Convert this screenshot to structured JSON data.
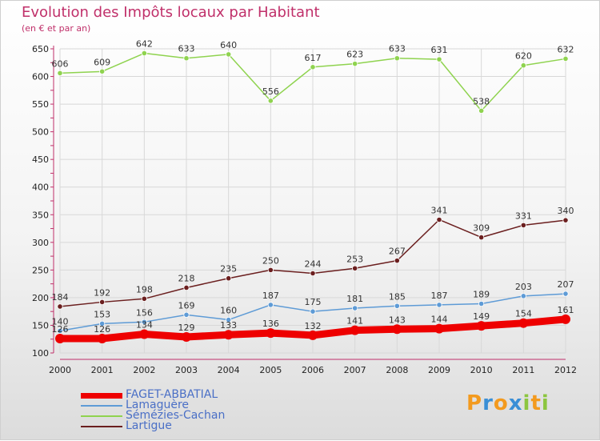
{
  "title": "Evolution des Impôts locaux par Habitant",
  "subtitle": "(en € et par an)",
  "logo": {
    "letters": [
      "P",
      "r",
      "o",
      "x",
      "i",
      "t",
      "i"
    ],
    "colors": [
      "#f39a1e",
      "#3a8fd6",
      "#f39a1e",
      "#3a8fd6",
      "#8cc63f",
      "#f39a1e",
      "#8cc63f"
    ]
  },
  "chart_data": {
    "type": "line",
    "x": [
      "2000",
      "2001",
      "2002",
      "2003",
      "2004",
      "2005",
      "2006",
      "2007",
      "2008",
      "2009",
      "2010",
      "2011",
      "2012"
    ],
    "ylim": [
      100,
      650
    ],
    "yticks": [
      100,
      150,
      200,
      250,
      300,
      350,
      400,
      450,
      500,
      550,
      600,
      650
    ],
    "grid": true,
    "legend_position": "bottom-left",
    "series": [
      {
        "name": "FAGET-ABBATIAL",
        "color": "#ee0000",
        "width": 9,
        "values": [
          126,
          126,
          134,
          129,
          133,
          136,
          132,
          141,
          143,
          144,
          149,
          154,
          161
        ],
        "labels": [
          "126",
          "126",
          "134",
          "129",
          "133",
          "136",
          "132",
          "141",
          "143",
          "144",
          "149",
          "154",
          "161"
        ]
      },
      {
        "name": "Lamaguère",
        "color": "#5e9bd6",
        "width": 1.5,
        "values": [
          140,
          153,
          156,
          169,
          160,
          187,
          175,
          181,
          185,
          187,
          189,
          203,
          207
        ],
        "labels": [
          "140",
          "153",
          "156",
          "169",
          "160",
          "187",
          "175",
          "181",
          "185",
          "187",
          "189",
          "203",
          "207"
        ]
      },
      {
        "name": "Sémézies-Cachan",
        "color": "#8fd34f",
        "width": 1.5,
        "values": [
          606,
          609,
          642,
          633,
          640,
          556,
          617,
          623,
          633,
          631,
          538,
          620,
          632
        ],
        "labels": [
          "606",
          "609",
          "642",
          "633",
          "640",
          "556",
          "617",
          "623",
          "633",
          "631",
          "538",
          "620",
          "632"
        ]
      },
      {
        "name": "Lartigue",
        "color": "#6b1f1f",
        "width": 1.5,
        "values": [
          184,
          192,
          198,
          218,
          235,
          250,
          244,
          253,
          267,
          341,
          309,
          331,
          340
        ],
        "labels": [
          "184",
          "192",
          "198",
          "218",
          "235",
          "250",
          "244",
          "253",
          "267",
          "341",
          "309",
          "331",
          "340"
        ]
      }
    ]
  }
}
